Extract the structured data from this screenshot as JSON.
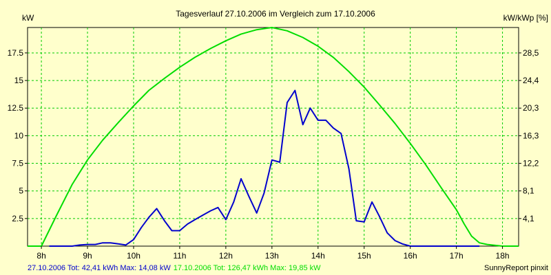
{
  "chart_data": {
    "type": "line",
    "title": "Tagesverlauf 27.10.2006 im Vergleich zum 17.10.2006",
    "ylabel_left": "kW",
    "ylabel_right": "kW/kWp [%]",
    "xlim": [
      7.7,
      18.35
    ],
    "ylim": [
      0,
      19.8
    ],
    "x_ticks": [
      {
        "x": 8,
        "label": "8h"
      },
      {
        "x": 9,
        "label": "9h"
      },
      {
        "x": 10,
        "label": "10h"
      },
      {
        "x": 11,
        "label": "11h"
      },
      {
        "x": 12,
        "label": "12h"
      },
      {
        "x": 13,
        "label": "13h"
      },
      {
        "x": 14,
        "label": "14h"
      },
      {
        "x": 15,
        "label": "15h"
      },
      {
        "x": 16,
        "label": "16h"
      },
      {
        "x": 17,
        "label": "17h"
      },
      {
        "x": 18,
        "label": "18h"
      }
    ],
    "y_left_ticks": [
      {
        "y": 2.5,
        "label": "2.5"
      },
      {
        "y": 5,
        "label": "5"
      },
      {
        "y": 7.5,
        "label": "7.5"
      },
      {
        "y": 10,
        "label": "10"
      },
      {
        "y": 12.5,
        "label": "12.5"
      },
      {
        "y": 15,
        "label": "15"
      },
      {
        "y": 17.5,
        "label": "17.5"
      }
    ],
    "y_right_ticks": [
      {
        "y": 2.5,
        "label": "4,1"
      },
      {
        "y": 5,
        "label": "8,1"
      },
      {
        "y": 7.5,
        "label": "12,2"
      },
      {
        "y": 10,
        "label": "16,3"
      },
      {
        "y": 12.5,
        "label": "20,3"
      },
      {
        "y": 15,
        "label": "24,4"
      },
      {
        "y": 17.5,
        "label": "28,5"
      }
    ],
    "grid": true,
    "series": [
      {
        "name": "17.10.2006",
        "color": "#00dd00",
        "x": [
          7.7,
          8.0,
          8.33,
          8.67,
          9.0,
          9.33,
          9.67,
          10.0,
          10.33,
          10.67,
          11.0,
          11.33,
          11.67,
          12.0,
          12.33,
          12.67,
          13.0,
          13.33,
          13.67,
          14.0,
          14.33,
          14.67,
          15.0,
          15.33,
          15.67,
          16.0,
          16.33,
          16.67,
          17.0,
          17.17,
          17.33,
          17.5,
          17.67,
          18.0,
          18.35
        ],
        "values": [
          0.0,
          0.0,
          2.8,
          5.6,
          7.8,
          9.6,
          11.2,
          12.7,
          14.1,
          15.2,
          16.2,
          17.1,
          17.9,
          18.6,
          19.2,
          19.6,
          19.8,
          19.5,
          18.9,
          18.1,
          17.1,
          15.8,
          14.4,
          12.8,
          11.1,
          9.3,
          7.4,
          5.3,
          3.3,
          2.0,
          0.9,
          0.3,
          0.15,
          0.0,
          0.0
        ],
        "summary": "17.10.2006 Tot: 126,47 kWh Max: 19,85 kW"
      },
      {
        "name": "27.10.2006",
        "color": "#0000cc",
        "x": [
          8.17,
          8.67,
          8.83,
          9.0,
          9.17,
          9.33,
          9.5,
          9.67,
          9.83,
          10.0,
          10.17,
          10.33,
          10.5,
          10.67,
          10.83,
          11.0,
          11.17,
          11.33,
          11.5,
          11.67,
          11.83,
          12.0,
          12.17,
          12.33,
          12.5,
          12.67,
          12.83,
          13.0,
          13.17,
          13.33,
          13.5,
          13.67,
          13.83,
          14.0,
          14.17,
          14.33,
          14.5,
          14.67,
          14.83,
          15.0,
          15.17,
          15.33,
          15.5,
          15.67,
          15.83,
          16.0,
          16.17,
          16.33,
          16.5,
          16.67,
          16.83,
          17.0,
          17.17,
          17.33,
          17.5
        ],
        "values": [
          0.0,
          0.0,
          0.1,
          0.15,
          0.15,
          0.3,
          0.3,
          0.2,
          0.1,
          0.6,
          1.7,
          2.6,
          3.4,
          2.3,
          1.4,
          1.4,
          2.0,
          2.4,
          2.8,
          3.2,
          3.5,
          2.4,
          4.0,
          6.1,
          4.5,
          3.0,
          4.8,
          7.8,
          7.6,
          13.0,
          14.1,
          11.0,
          12.5,
          11.4,
          11.4,
          10.7,
          10.2,
          7.0,
          2.3,
          2.2,
          4.0,
          2.7,
          1.2,
          0.5,
          0.2,
          0.0,
          0.0,
          0.0,
          0.0,
          0.0,
          0.0,
          0.0,
          0.0,
          0.0,
          0.0
        ],
        "summary": "27.10.2006 Tot: 42,41 kWh Max: 14,08 kW"
      }
    ],
    "credit": "SunnyReport pinxit"
  }
}
